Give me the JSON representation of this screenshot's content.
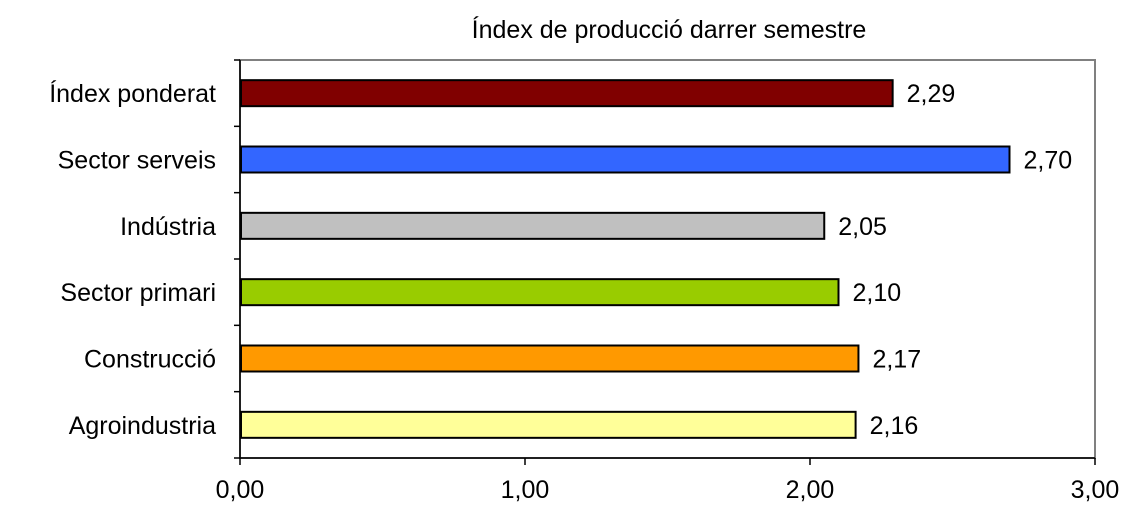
{
  "chart_data": {
    "type": "bar",
    "orientation": "horizontal",
    "title": "Índex de producció darrer semestre",
    "xlabel": "",
    "ylabel": "",
    "categories": [
      "Índex ponderat",
      "Sector serveis",
      "Indústria",
      "Sector primari",
      "Construcció",
      "Agroindustria"
    ],
    "values": [
      2.29,
      2.7,
      2.05,
      2.1,
      2.17,
      2.16
    ],
    "value_labels": [
      "2,29",
      "2,70",
      "2,05",
      "2,10",
      "2,17",
      "2,16"
    ],
    "bar_colors": [
      "#800000",
      "#3366FF",
      "#C0C0C0",
      "#99CC00",
      "#FF9900",
      "#FFFF99"
    ],
    "xlim": [
      0,
      3
    ],
    "x_ticks": [
      0,
      1,
      2,
      3
    ],
    "x_tick_labels": [
      "0,00",
      "1,00",
      "2,00",
      "3,00"
    ],
    "grid": false,
    "legend": "none"
  }
}
